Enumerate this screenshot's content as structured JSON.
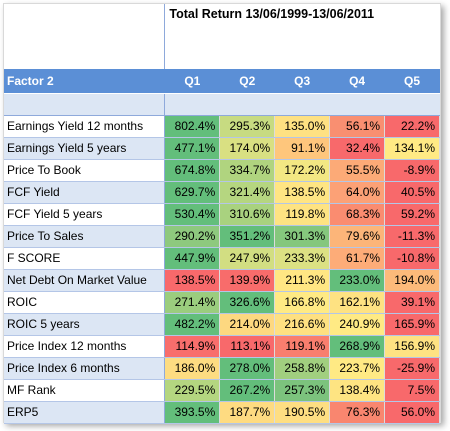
{
  "title": "Total Return 13/06/1999-13/06/2011",
  "chart_data": {
    "type": "table",
    "row_header": "Factor 2",
    "columns": [
      "Q1",
      "Q2",
      "Q3",
      "Q4",
      "Q5"
    ],
    "rows": [
      {
        "label": "Earnings Yield 12 months",
        "values": [
          "802.4%",
          "295.3%",
          "135.0%",
          "56.1%",
          "22.2%"
        ],
        "colors": [
          "#63be7b",
          "#c7db81",
          "#fee182",
          "#f98f71",
          "#f8696b"
        ]
      },
      {
        "label": "Earnings Yield 5 years",
        "values": [
          "477.1%",
          "174.0%",
          "91.1%",
          "32.4%",
          "134.1%"
        ],
        "colors": [
          "#63be7b",
          "#d9e082",
          "#fec67c",
          "#f8696b",
          "#ffea84"
        ]
      },
      {
        "label": "Price To Book",
        "values": [
          "674.8%",
          "334.7%",
          "172.2%",
          "55.5%",
          "-8.9%"
        ],
        "colors": [
          "#63be7b",
          "#b0d47f",
          "#f3e783",
          "#fcaa77",
          "#f8696b"
        ]
      },
      {
        "label": "FCF Yield",
        "values": [
          "629.7%",
          "321.4%",
          "138.5%",
          "64.0%",
          "40.5%"
        ],
        "colors": [
          "#63be7b",
          "#b5d680",
          "#ffe583",
          "#fca176",
          "#f8696b"
        ]
      },
      {
        "label": "FCF Yield 5 years",
        "values": [
          "530.4%",
          "310.6%",
          "119.8%",
          "68.3%",
          "59.2%"
        ],
        "colors": [
          "#63be7b",
          "#a9d27f",
          "#fee382",
          "#fa8c70",
          "#f8696b"
        ]
      },
      {
        "label": "Price To Sales",
        "values": [
          "290.2%",
          "351.2%",
          "301.3%",
          "79.6%",
          "-11.3%"
        ],
        "colors": [
          "#8ec97e",
          "#63be7b",
          "#85c77d",
          "#fcb579",
          "#f8696b"
        ]
      },
      {
        "label": "F SCORE",
        "values": [
          "447.9%",
          "247.9%",
          "233.3%",
          "61.7%",
          "-10.8%"
        ],
        "colors": [
          "#63be7b",
          "#d2de82",
          "#dce183",
          "#fdac78",
          "#f8696b"
        ]
      },
      {
        "label": "Net Debt On Market Value",
        "values": [
          "138.5%",
          "139.9%",
          "211.3%",
          "233.0%",
          "194.0%"
        ],
        "colors": [
          "#f8696b",
          "#f86c6b",
          "#ffe683",
          "#63be7b",
          "#fcba7a"
        ]
      },
      {
        "label": "ROIC",
        "values": [
          "271.4%",
          "326.6%",
          "166.8%",
          "162.1%",
          "39.1%"
        ],
        "colors": [
          "#9bcd7e",
          "#63be7b",
          "#ffea84",
          "#fee282",
          "#f8696b"
        ]
      },
      {
        "label": "ROIC 5 years",
        "values": [
          "482.2%",
          "214.0%",
          "216.6%",
          "240.9%",
          "165.9%"
        ],
        "colors": [
          "#63be7b",
          "#fdd880",
          "#fee081",
          "#ffea84",
          "#f8696b"
        ]
      },
      {
        "label": "Price Index 12 months",
        "values": [
          "114.9%",
          "113.1%",
          "119.1%",
          "268.9%",
          "156.9%"
        ],
        "colors": [
          "#f86e6c",
          "#f8696b",
          "#f97e6e",
          "#63be7b",
          "#fee282"
        ]
      },
      {
        "label": "Price Index 6 months",
        "values": [
          "186.0%",
          "278.0%",
          "258.8%",
          "223.7%",
          "-25.9%"
        ],
        "colors": [
          "#fddc81",
          "#63be7b",
          "#a1cf7f",
          "#ffea84",
          "#f8696b"
        ]
      },
      {
        "label": "MF Rank",
        "values": [
          "229.5%",
          "267.2%",
          "257.3%",
          "138.4%",
          "7.5%"
        ],
        "colors": [
          "#b4d680",
          "#63be7b",
          "#7cc37d",
          "#fee482",
          "#f8696b"
        ]
      },
      {
        "label": "ERP5",
        "values": [
          "393.5%",
          "187.7%",
          "190.5%",
          "76.3%",
          "56.0%"
        ],
        "colors": [
          "#63be7b",
          "#fedb81",
          "#fede82",
          "#f9866f",
          "#f8696b"
        ]
      }
    ]
  }
}
